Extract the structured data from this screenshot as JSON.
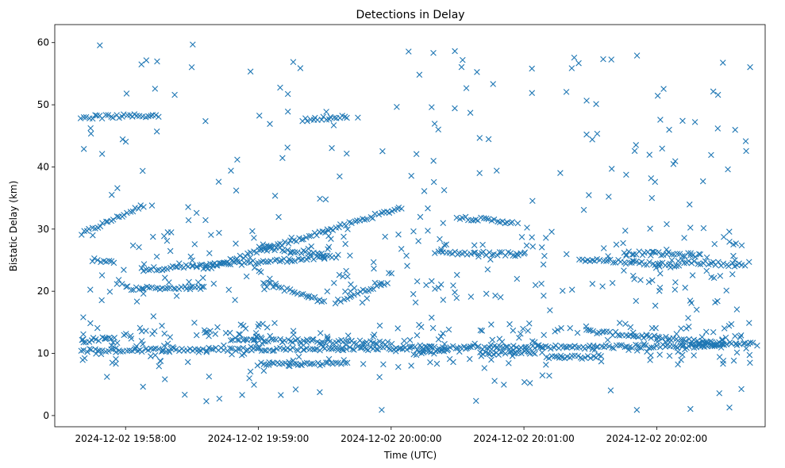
{
  "chart_data": {
    "type": "scatter",
    "title": "Detections in Delay",
    "xlabel": "Time (UTC)",
    "ylabel": "Bistatic Delay (km)",
    "x_ticks": [
      "2024-12-02 19:58:00",
      "2024-12-02 19:59:00",
      "2024-12-02 20:00:00",
      "2024-12-02 20:01:00",
      "2024-12-02 20:02:00"
    ],
    "x_tick_seconds_after_1958": [
      0,
      60,
      120,
      180,
      240
    ],
    "y_ticks": [
      0,
      10,
      20,
      30,
      40,
      50,
      60
    ],
    "xlim_seconds_after_1958": [
      -32,
      289
    ],
    "ylim": [
      -1.8,
      62.9
    ],
    "marker": "x",
    "color": "#1f77b4",
    "grid": false,
    "series": [
      {
        "name": "",
        "tracks": [
          {
            "x_start": -20,
            "x_end": 8,
            "y_start": 29.2,
            "y_end": 33.8
          },
          {
            "x_start": 8,
            "x_end": 90,
            "y_start": 23.5,
            "y_end": 25.4
          },
          {
            "x_start": 35,
            "x_end": 125,
            "y_start": 23.6,
            "y_end": 33.5
          },
          {
            "x_start": 60,
            "x_end": 96,
            "y_start": 27.2,
            "y_end": 25.6
          },
          {
            "x_start": 62,
            "x_end": 90,
            "y_start": 21.5,
            "y_end": 18.2
          },
          {
            "x_start": 95,
            "x_end": 118,
            "y_start": 18.3,
            "y_end": 21.5
          },
          {
            "x_start": 150,
            "x_end": 175,
            "y_start": 31.9,
            "y_end": 31.1
          },
          {
            "x_start": 208,
            "x_end": 270,
            "y_start": 13.6,
            "y_end": 11.5
          },
          {
            "x_start": -20,
            "x_end": 270,
            "y_start": 10.5,
            "y_end": 11.2
          },
          {
            "x_start": 48,
            "x_end": 120,
            "y_start": 12.3,
            "y_end": 11.7
          },
          {
            "x_start": -20,
            "x_end": -5,
            "y_start": 12.0,
            "y_end": 12.6
          },
          {
            "x_start": -20,
            "x_end": 15,
            "y_start": 48.0,
            "y_end": 48.3
          },
          {
            "x_start": 80,
            "x_end": 100,
            "y_start": 47.5,
            "y_end": 48.2
          },
          {
            "x_start": 130,
            "x_end": 145,
            "y_start": 10.0,
            "y_end": 10.4
          },
          {
            "x_start": 160,
            "x_end": 185,
            "y_start": 10.0,
            "y_end": 10.2
          },
          {
            "x_start": 190,
            "x_end": 215,
            "y_start": 9.3,
            "y_end": 9.5
          },
          {
            "x_start": 205,
            "x_end": 250,
            "y_start": 25.2,
            "y_end": 24.2
          },
          {
            "x_start": 225,
            "x_end": 260,
            "y_start": 26.2,
            "y_end": 25.8
          },
          {
            "x_start": 250,
            "x_end": 280,
            "y_start": 24.8,
            "y_end": 24.2
          },
          {
            "x_start": 140,
            "x_end": 180,
            "y_start": 26.2,
            "y_end": 26.0
          },
          {
            "x_start": 0,
            "x_end": 35,
            "y_start": 20.5,
            "y_end": 20.5
          },
          {
            "x_start": 60,
            "x_end": 100,
            "y_start": 8.3,
            "y_end": 8.3
          },
          {
            "x_start": -15,
            "x_end": -5,
            "y_start": 25.1,
            "y_end": 24.8
          },
          {
            "x_start": 255,
            "x_end": 285,
            "y_start": 11.5,
            "y_end": 11.5
          }
        ],
        "scatter_extent": {
          "x": [
            -20,
            283
          ],
          "y": [
            0.8,
            59.9
          ]
        }
      }
    ]
  }
}
